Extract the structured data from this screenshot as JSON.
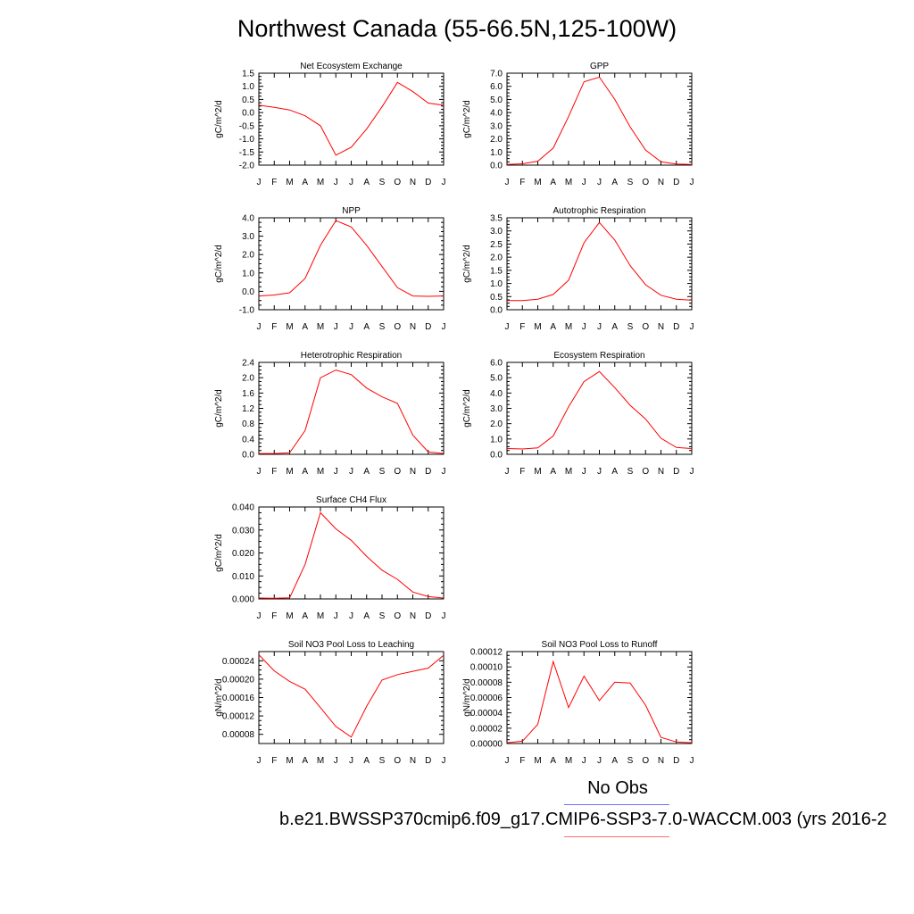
{
  "title": "Northwest Canada (55-66.5N,125-100W)",
  "legend": {
    "obs_label": "No Obs",
    "obs_color": "#6f6fff",
    "case_label": "b.e21.BWSSP370cmip6.f09_g17.CMIP6-SSP3-7.0-WACCM.003 (yrs 2016-2",
    "case_color": "#ff0000"
  },
  "months": [
    "J",
    "F",
    "M",
    "A",
    "M",
    "J",
    "J",
    "A",
    "S",
    "O",
    "N",
    "D",
    "J"
  ],
  "chart_data": [
    {
      "type": "line",
      "title": "Net Ecosystem Exchange",
      "ylabel": "gC/m^2/d",
      "ylim": [
        -2.0,
        1.5
      ],
      "yticks": [
        "-2.0",
        "-1.5",
        "-1.0",
        "-0.5",
        "0.0",
        "0.5",
        "1.0",
        "1.5"
      ],
      "series": [
        {
          "color": "#ff0000",
          "values": [
            0.28,
            0.2,
            0.1,
            -0.12,
            -0.5,
            -1.62,
            -1.32,
            -0.62,
            0.22,
            1.15,
            0.8,
            0.36,
            0.28
          ]
        }
      ]
    },
    {
      "type": "line",
      "title": "GPP",
      "ylabel": "gC/m^2/d",
      "ylim": [
        0.0,
        7.0
      ],
      "yticks": [
        "0.0",
        "1.0",
        "2.0",
        "3.0",
        "4.0",
        "5.0",
        "6.0",
        "7.0"
      ],
      "series": [
        {
          "color": "#ff0000",
          "values": [
            0.05,
            0.1,
            0.3,
            1.3,
            3.7,
            6.35,
            6.7,
            5.0,
            2.9,
            1.15,
            0.25,
            0.08,
            0.05
          ]
        }
      ]
    },
    {
      "type": "line",
      "title": "NPP",
      "ylabel": "gC/m^2/d",
      "ylim": [
        -1.0,
        4.0
      ],
      "yticks": [
        "-1.0",
        "0.0",
        "1.0",
        "2.0",
        "3.0",
        "4.0"
      ],
      "series": [
        {
          "color": "#ff0000",
          "values": [
            -0.25,
            -0.2,
            -0.08,
            0.7,
            2.5,
            3.85,
            3.5,
            2.5,
            1.35,
            0.2,
            -0.25,
            -0.27,
            -0.25
          ]
        }
      ]
    },
    {
      "type": "line",
      "title": "Autotrophic Respiration",
      "ylabel": "gC/m^2/d",
      "ylim": [
        0.0,
        3.5
      ],
      "yticks": [
        "0.0",
        "0.5",
        "1.0",
        "1.5",
        "2.0",
        "2.5",
        "3.0",
        "3.5"
      ],
      "series": [
        {
          "color": "#ff0000",
          "values": [
            0.35,
            0.35,
            0.4,
            0.58,
            1.12,
            2.55,
            3.32,
            2.65,
            1.68,
            0.95,
            0.55,
            0.4,
            0.36
          ]
        }
      ]
    },
    {
      "type": "line",
      "title": "Heterotrophic Respiration",
      "ylabel": "gC/m^2/d",
      "ylim": [
        0.0,
        2.4
      ],
      "yticks": [
        "0.0",
        "0.4",
        "0.8",
        "1.2",
        "1.6",
        "2.0",
        "2.4"
      ],
      "series": [
        {
          "color": "#ff0000",
          "values": [
            0.02,
            0.02,
            0.04,
            0.62,
            2.0,
            2.2,
            2.08,
            1.73,
            1.5,
            1.33,
            0.5,
            0.06,
            0.02
          ]
        }
      ]
    },
    {
      "type": "line",
      "title": "Ecosystem Respiration",
      "ylabel": "gC/m^2/d",
      "ylim": [
        0.0,
        6.0
      ],
      "yticks": [
        "0.0",
        "1.0",
        "2.0",
        "3.0",
        "4.0",
        "5.0",
        "6.0"
      ],
      "series": [
        {
          "color": "#ff0000",
          "values": [
            0.38,
            0.35,
            0.42,
            1.2,
            3.1,
            4.75,
            5.4,
            4.35,
            3.2,
            2.3,
            1.05,
            0.45,
            0.38
          ]
        }
      ]
    },
    {
      "type": "line",
      "title": "Surface CH4 Flux",
      "ylabel": "gC/m^2/d",
      "ylim": [
        0.0,
        0.04
      ],
      "yticks": [
        "0.000",
        "0.010",
        "0.020",
        "0.030",
        "0.040"
      ],
      "series": [
        {
          "color": "#ff0000",
          "values": [
            0.0004,
            0.0003,
            0.0005,
            0.015,
            0.0375,
            0.0305,
            0.0255,
            0.0185,
            0.0125,
            0.0085,
            0.003,
            0.001,
            0.0004
          ]
        }
      ]
    },
    {
      "type": "line",
      "title": "Soil NO3 Pool Loss to Leaching",
      "ylabel": "gN/m^2/d",
      "ylim": [
        6e-05,
        0.00026
      ],
      "yticks": [
        "0.00008",
        "0.00012",
        "0.00016",
        "0.00020",
        "0.00024"
      ],
      "ytick_values": [
        8e-05,
        0.00012,
        0.00016,
        0.0002,
        0.00024
      ],
      "series": [
        {
          "color": "#ff0000",
          "values": [
            0.000253,
            0.000218,
            0.000195,
            0.000178,
            0.000138,
            9.7e-05,
            7.4e-05,
            0.000141,
            0.000198,
            0.00021,
            0.000217,
            0.000224,
            0.000252
          ]
        }
      ]
    },
    {
      "type": "line",
      "title": "Soil NO3 Pool Loss to Runoff",
      "ylabel": "gN/m^2/d",
      "ylim": [
        0.0,
        0.00012
      ],
      "yticks": [
        "0.00000",
        "0.00002",
        "0.00004",
        "0.00006",
        "0.00008",
        "0.00010",
        "0.00012"
      ],
      "series": [
        {
          "color": "#ff0000",
          "values": [
            1e-06,
            3e-06,
            2.5e-05,
            0.000107,
            4.7e-05,
            8.8e-05,
            5.6e-05,
            8e-05,
            7.9e-05,
            5e-05,
            8e-06,
            2e-06,
            1e-06
          ]
        }
      ]
    }
  ]
}
